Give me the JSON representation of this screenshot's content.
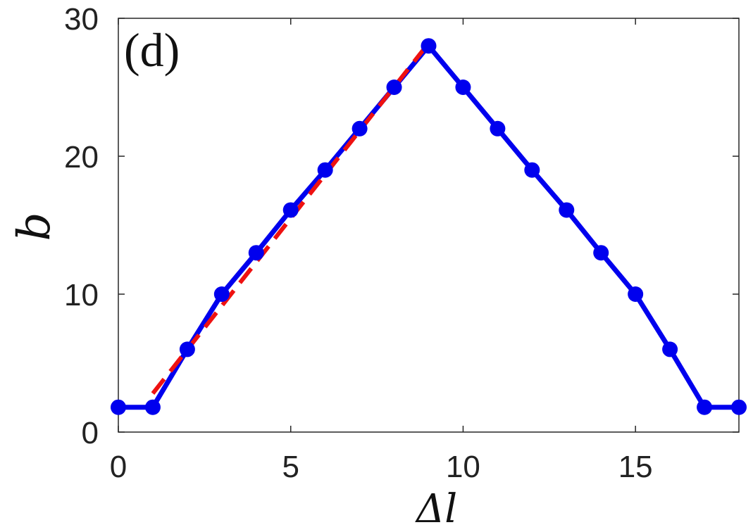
{
  "chart_data": {
    "type": "line",
    "panel_label": "(d)",
    "xlabel": "Δl",
    "ylabel": "b",
    "xlim": [
      0,
      18
    ],
    "ylim": [
      0,
      30
    ],
    "xticks": [
      0,
      5,
      10,
      15
    ],
    "yticks": [
      0,
      10,
      20,
      30
    ],
    "grid": false,
    "series": [
      {
        "style": "solid-with-markers",
        "color": "#0000ee",
        "x": [
          0,
          1,
          2,
          3,
          4,
          5,
          6,
          7,
          8,
          9,
          10,
          11,
          12,
          13,
          14,
          15,
          16,
          17,
          18
        ],
        "y": [
          1.8,
          1.8,
          6,
          10,
          13,
          16.1,
          19,
          22,
          25,
          28,
          25,
          22,
          19,
          16.1,
          13,
          10,
          6,
          1.8,
          1.8
        ]
      },
      {
        "style": "dashed",
        "color": "#ee1111",
        "x": [
          1,
          9
        ],
        "y": [
          2.8,
          28.2
        ]
      }
    ]
  }
}
